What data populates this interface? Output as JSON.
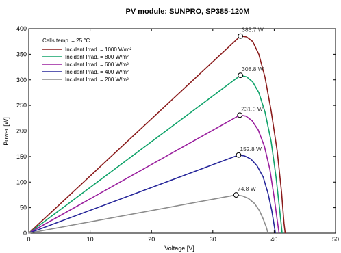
{
  "chart_data": {
    "type": "line",
    "title": "PV module:  SUNPRO,  SP385-120M",
    "xlabel": "Voltage [V]",
    "ylabel": "Power [W]",
    "xlim": [
      0,
      50
    ],
    "ylim": [
      0,
      400
    ],
    "x_ticks": [
      "0",
      "10",
      "20",
      "30",
      "40",
      "50"
    ],
    "y_ticks": [
      "0",
      "50",
      "100",
      "150",
      "200",
      "250",
      "300",
      "350",
      "400"
    ],
    "annotation": "Cells temp. = 25 °C",
    "legend_position": "top-left",
    "series": [
      {
        "name": "Incident Irrad. = 1000 W/m²",
        "color": "#8b1c1c",
        "peak_label": "385.7 W",
        "points": [
          [
            0,
            0
          ],
          [
            34.5,
            385.7
          ],
          [
            35.5,
            384
          ],
          [
            36.5,
            375
          ],
          [
            37.5,
            350
          ],
          [
            38.5,
            305
          ],
          [
            39.5,
            240
          ],
          [
            40.5,
            160
          ],
          [
            41.2,
            80
          ],
          [
            41.6,
            20
          ],
          [
            41.8,
            0
          ]
        ]
      },
      {
        "name": "Incident Irrad. = 800 W/m²",
        "color": "#10a36a",
        "peak_label": "308.8 W",
        "points": [
          [
            0,
            0
          ],
          [
            34.5,
            308.8
          ],
          [
            35.5,
            306
          ],
          [
            36.5,
            296
          ],
          [
            37.5,
            275
          ],
          [
            38.5,
            237
          ],
          [
            39.5,
            180
          ],
          [
            40.3,
            110
          ],
          [
            40.9,
            45
          ],
          [
            41.3,
            0
          ]
        ]
      },
      {
        "name": "Incident Irrad. = 600 W/m²",
        "color": "#9a1f9e",
        "peak_label": "231.0 W",
        "points": [
          [
            0,
            0
          ],
          [
            34.4,
            231.0
          ],
          [
            35.4,
            229
          ],
          [
            36.4,
            220
          ],
          [
            37.4,
            202
          ],
          [
            38.4,
            170
          ],
          [
            39.3,
            125
          ],
          [
            40.0,
            70
          ],
          [
            40.5,
            25
          ],
          [
            40.8,
            0
          ]
        ]
      },
      {
        "name": "Incident Irrad. = 400 W/m²",
        "color": "#26269a",
        "peak_label": "152.8 W",
        "points": [
          [
            0,
            0
          ],
          [
            34.2,
            152.8
          ],
          [
            35.2,
            151
          ],
          [
            36.2,
            145
          ],
          [
            37.2,
            132
          ],
          [
            38.2,
            110
          ],
          [
            39.0,
            78
          ],
          [
            39.6,
            45
          ],
          [
            40.0,
            15
          ],
          [
            40.2,
            0
          ]
        ]
      },
      {
        "name": "Incident Irrad. = 200 W/m²",
        "color": "#8c8c8c",
        "peak_label": "74.8 W",
        "points": [
          [
            0,
            0
          ],
          [
            33.8,
            74.8
          ],
          [
            34.8,
            73
          ],
          [
            35.8,
            68
          ],
          [
            36.8,
            58
          ],
          [
            37.6,
            44
          ],
          [
            38.2,
            28
          ],
          [
            38.7,
            12
          ],
          [
            39.0,
            0
          ]
        ]
      }
    ]
  }
}
